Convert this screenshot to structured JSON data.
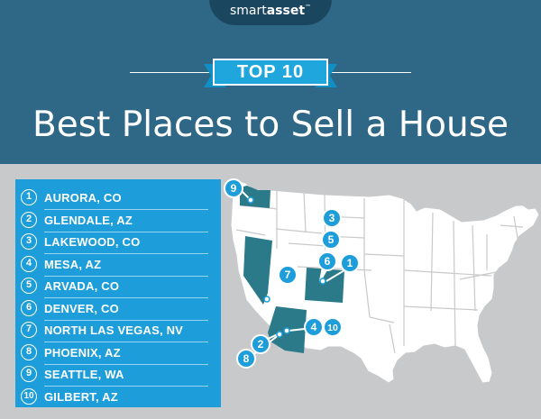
{
  "logo": {
    "part1": "smart",
    "part2": "asset",
    "tm": "™"
  },
  "badge": "TOP 10",
  "title": "Best Places to Sell a House",
  "list": [
    {
      "rank": "1",
      "name": "AURORA, CO"
    },
    {
      "rank": "2",
      "name": "GLENDALE, AZ"
    },
    {
      "rank": "3",
      "name": "LAKEWOOD, CO"
    },
    {
      "rank": "4",
      "name": "MESA, AZ"
    },
    {
      "rank": "5",
      "name": "ARVADA, CO"
    },
    {
      "rank": "6",
      "name": "DENVER, CO"
    },
    {
      "rank": "7",
      "name": "NORTH LAS VEGAS, NV"
    },
    {
      "rank": "8",
      "name": "PHOENIX, AZ"
    },
    {
      "rank": "9",
      "name": "SEATTLE, WA"
    },
    {
      "rank": "10",
      "name": "GILBERT, AZ"
    }
  ],
  "map_markers": [
    "9",
    "3",
    "5",
    "6",
    "1",
    "7",
    "4",
    "10",
    "2",
    "8"
  ],
  "colors": {
    "header": "#2f6786",
    "accent": "#1d9dd9",
    "highlight": "#2a7a8a",
    "background": "#c8c9ca"
  }
}
